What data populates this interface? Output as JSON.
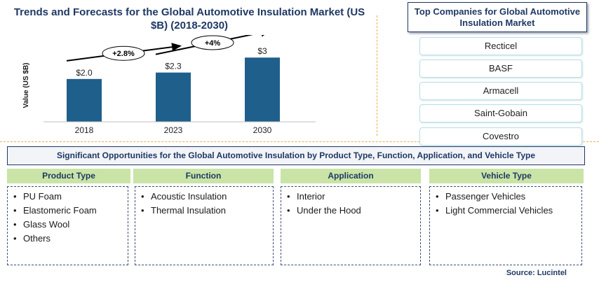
{
  "chart_data": {
    "type": "bar",
    "title": "Trends and Forecasts for the Global Automotive Insulation Market (US $B) (2018-2030)",
    "xlabel": "",
    "ylabel": "Value (US $B)",
    "categories": [
      "2018",
      "2023",
      "2030"
    ],
    "values": [
      2.0,
      2.3,
      3.0
    ],
    "data_labels": [
      "$2.0",
      "$2.3",
      "$3"
    ],
    "ylim": [
      0,
      3.4
    ],
    "grid": false,
    "bar_color": "#1f5f8b",
    "growth_annotations": [
      {
        "label": "+2.8%",
        "from": "2018",
        "to": "2023"
      },
      {
        "label": "+4%",
        "from": "2023",
        "to": "2030"
      }
    ]
  },
  "companies": {
    "title": "Top Companies for Global Automotive Insulation Market",
    "items": [
      "Recticel",
      "BASF",
      "Armacell",
      "Saint-Gobain",
      "Covestro"
    ]
  },
  "opportunities": {
    "title": "Significant Opportunities for the Global Automotive Insulation by Product Type, Function, Application, and Vehicle Type",
    "categories": [
      {
        "name": "Product Type",
        "items": [
          "PU Foam",
          "Elastomeric Foam",
          "Glass Wool",
          "Others"
        ]
      },
      {
        "name": "Function",
        "items": [
          "Acoustic Insulation",
          "Thermal Insulation"
        ]
      },
      {
        "name": "Application",
        "items": [
          "Interior",
          "Under the Hood"
        ]
      },
      {
        "name": "Vehicle Type",
        "items": [
          "Passenger Vehicles",
          "Light Commercial Vehicles"
        ]
      }
    ]
  },
  "source": "Source: Lucintel",
  "colors": {
    "accent_navy": "#1f3864",
    "bar": "#1f5f8b",
    "category_header": "#c9e4a6",
    "divider": "#e8b04a"
  }
}
